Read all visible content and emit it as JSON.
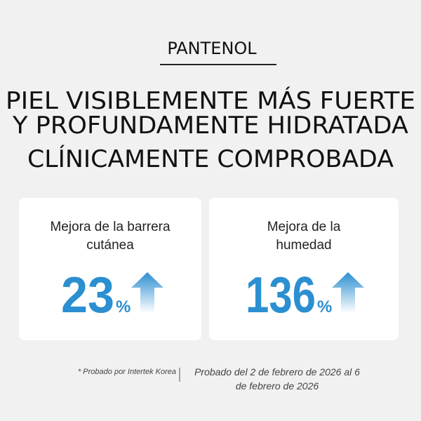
{
  "header": {
    "brand": "PANTENOL",
    "headline": [
      "PIEL VISIBLEMENTE MÁS FUERTE",
      "Y PROFUNDAMENTE HIDRATADA"
    ],
    "subheadline": "CLÍNICAMENTE COMPROBADA"
  },
  "cards": [
    {
      "label": [
        "Mejora de la barrera",
        "cutánea"
      ],
      "value": "23",
      "unit": "%"
    },
    {
      "label": [
        "Mejora de la",
        "humedad"
      ],
      "value": "136",
      "unit": "%"
    }
  ],
  "footnote": {
    "source": "* Probado por Intertek Korea",
    "period": [
      "Probado del 2 de febrero de 2026 al 6",
      "de febrero de 2026"
    ]
  }
}
